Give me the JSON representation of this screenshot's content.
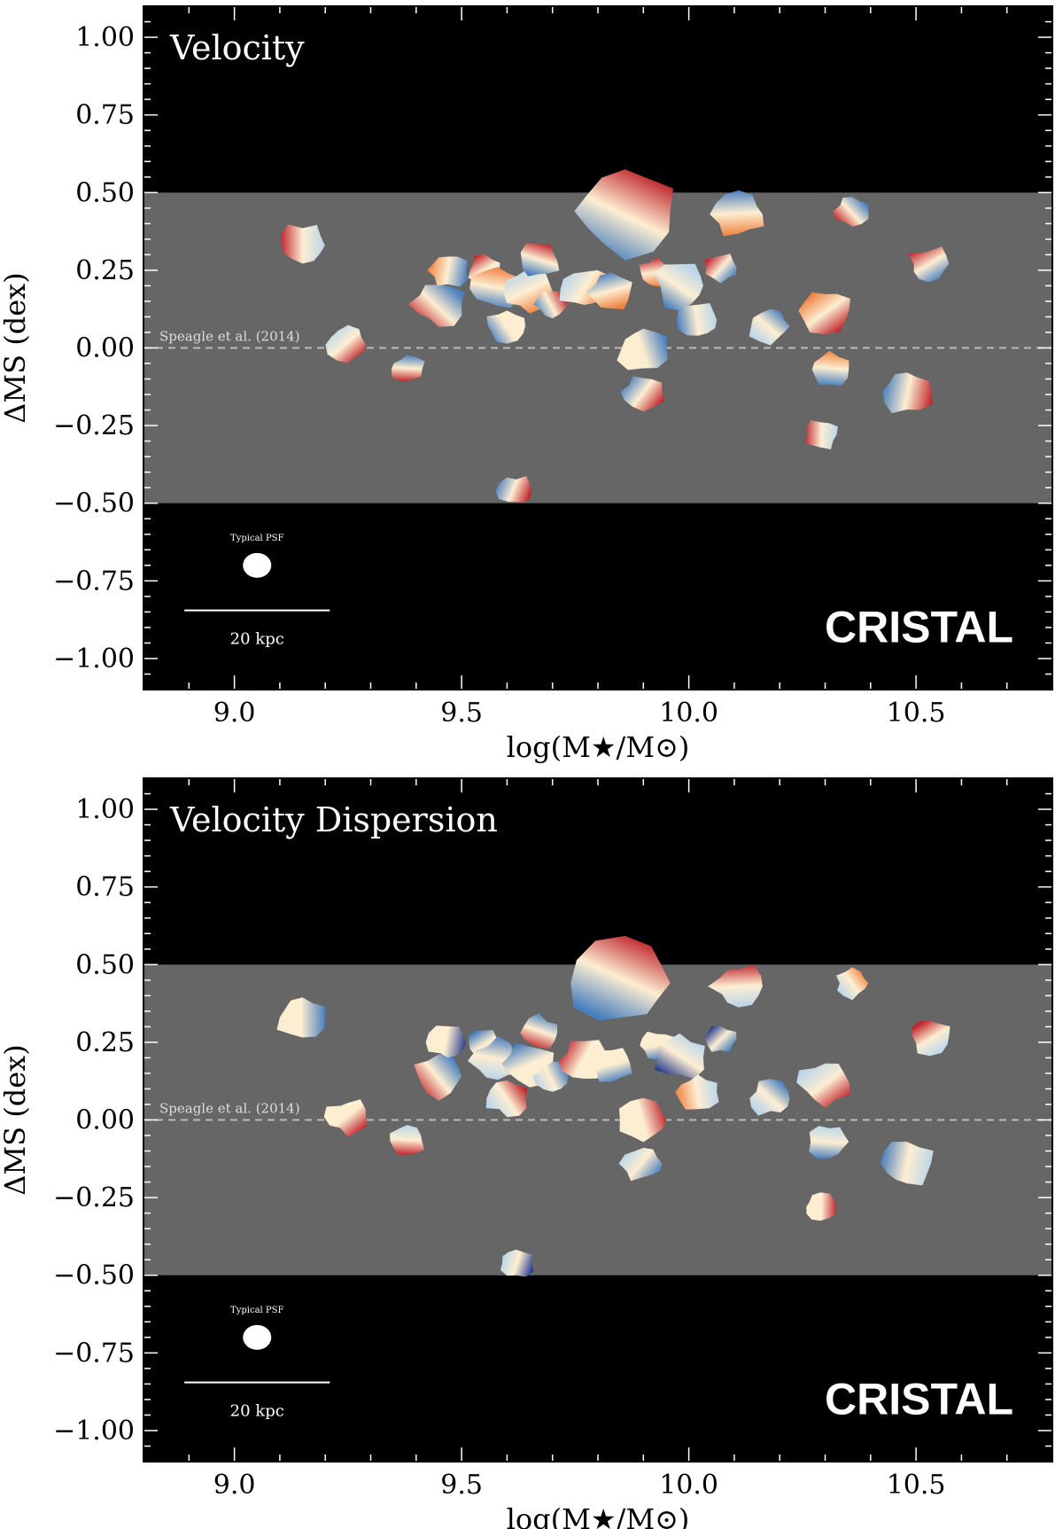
{
  "colors": {
    "background": "#000000",
    "ms_band": "#666666",
    "reference_line": "#bbbbbb",
    "red": "#c0272d",
    "orange": "#f07f3c",
    "cream": "#fdeed2",
    "light_blue": "#b9d5ea",
    "blue": "#4a7fbd",
    "dark_blue": "#2b3f8f"
  },
  "chart_data": [
    {
      "type": "scatter",
      "panel": "top",
      "title": "Velocity",
      "xlabel": "log(M★/M⊙)",
      "ylabel": "ΔMS (dex)",
      "xlim": [
        8.8,
        10.8
      ],
      "ylim": [
        -1.1,
        1.1
      ],
      "xticks": [
        9.0,
        9.5,
        10.0,
        10.5
      ],
      "xtick_labels": [
        "9.0",
        "9.5",
        "10.0",
        "10.5"
      ],
      "yticks": [
        1.0,
        0.75,
        0.5,
        0.25,
        0.0,
        -0.25,
        -0.5,
        -0.75,
        -1.0
      ],
      "ytick_labels": [
        "1.00",
        "0.75",
        "0.50",
        "0.25",
        "0.00",
        "−0.25",
        "−0.50",
        "−0.75",
        "−1.00"
      ],
      "band": [
        -0.5,
        0.5
      ],
      "reference_line": {
        "y": 0.0,
        "label": "Speagle et al. (2014)"
      },
      "psf_label": "Typical PSF",
      "scale_bar_label": "20 kpc",
      "brand": "CRISTAL",
      "galaxies": [
        {
          "x": 9.15,
          "y": 0.33,
          "colors": [
            "red",
            "light_blue"
          ]
        },
        {
          "x": 9.25,
          "y": 0.01,
          "colors": [
            "light_blue",
            "red"
          ]
        },
        {
          "x": 9.38,
          "y": -0.07,
          "colors": [
            "blue",
            "red"
          ]
        },
        {
          "x": 9.45,
          "y": 0.14,
          "colors": [
            "blue",
            "red"
          ]
        },
        {
          "x": 9.47,
          "y": 0.25,
          "colors": [
            "blue",
            "orange"
          ]
        },
        {
          "x": 9.55,
          "y": 0.25,
          "colors": [
            "light_blue",
            "red"
          ]
        },
        {
          "x": 9.58,
          "y": 0.19,
          "colors": [
            "blue",
            "orange"
          ]
        },
        {
          "x": 9.6,
          "y": 0.07,
          "colors": [
            "blue",
            "cream"
          ]
        },
        {
          "x": 9.62,
          "y": -0.46,
          "colors": [
            "blue",
            "red"
          ]
        },
        {
          "x": 9.65,
          "y": 0.18,
          "colors": [
            "light_blue",
            "orange"
          ]
        },
        {
          "x": 9.67,
          "y": 0.28,
          "colors": [
            "red",
            "blue"
          ]
        },
        {
          "x": 9.7,
          "y": 0.14,
          "colors": [
            "red",
            "blue"
          ]
        },
        {
          "x": 9.77,
          "y": 0.19,
          "colors": [
            "orange",
            "light_blue"
          ]
        },
        {
          "x": 9.83,
          "y": 0.18,
          "colors": [
            "orange",
            "blue"
          ]
        },
        {
          "x": 9.86,
          "y": 0.44,
          "colors": [
            "blue",
            "red"
          ]
        },
        {
          "x": 9.9,
          "y": 0.0,
          "colors": [
            "cream",
            "blue"
          ]
        },
        {
          "x": 9.9,
          "y": -0.14,
          "colors": [
            "blue",
            "red"
          ]
        },
        {
          "x": 9.93,
          "y": 0.24,
          "colors": [
            "red",
            "orange"
          ]
        },
        {
          "x": 9.98,
          "y": 0.2,
          "colors": [
            "light_blue",
            "blue"
          ]
        },
        {
          "x": 10.02,
          "y": 0.09,
          "colors": [
            "light_blue",
            "blue"
          ]
        },
        {
          "x": 10.07,
          "y": 0.26,
          "colors": [
            "blue",
            "red"
          ]
        },
        {
          "x": 10.11,
          "y": 0.43,
          "colors": [
            "orange",
            "blue"
          ]
        },
        {
          "x": 10.18,
          "y": 0.07,
          "colors": [
            "light_blue",
            "blue"
          ]
        },
        {
          "x": 10.29,
          "y": -0.28,
          "colors": [
            "red",
            "light_blue"
          ]
        },
        {
          "x": 10.3,
          "y": 0.12,
          "colors": [
            "orange",
            "red"
          ]
        },
        {
          "x": 10.31,
          "y": -0.07,
          "colors": [
            "orange",
            "blue"
          ]
        },
        {
          "x": 10.36,
          "y": 0.44,
          "colors": [
            "blue",
            "red"
          ]
        },
        {
          "x": 10.48,
          "y": -0.14,
          "colors": [
            "red",
            "blue"
          ]
        },
        {
          "x": 10.53,
          "y": 0.27,
          "colors": [
            "blue",
            "red"
          ]
        }
      ]
    },
    {
      "type": "scatter",
      "panel": "bottom",
      "title": "Velocity Dispersion",
      "xlabel": "log(M★/M⊙)",
      "ylabel": "ΔMS (dex)",
      "xlim": [
        8.8,
        10.8
      ],
      "ylim": [
        -1.1,
        1.1
      ],
      "xticks": [
        9.0,
        9.5,
        10.0,
        10.5
      ],
      "xtick_labels": [
        "9.0",
        "9.5",
        "10.0",
        "10.5"
      ],
      "yticks": [
        1.0,
        0.75,
        0.5,
        0.25,
        0.0,
        -0.25,
        -0.5,
        -0.75,
        -1.0
      ],
      "ytick_labels": [
        "1.00",
        "0.75",
        "0.50",
        "0.25",
        "0.00",
        "−0.25",
        "−0.50",
        "−0.75",
        "−1.00"
      ],
      "band": [
        -0.5,
        0.5
      ],
      "reference_line": {
        "y": 0.0,
        "label": "Speagle et al. (2014)"
      },
      "psf_label": "Typical PSF",
      "scale_bar_label": "20 kpc",
      "brand": "CRISTAL",
      "galaxies": [
        {
          "x": 9.15,
          "y": 0.33,
          "colors": [
            "cream",
            "blue"
          ]
        },
        {
          "x": 9.25,
          "y": 0.01,
          "colors": [
            "cream",
            "red"
          ]
        },
        {
          "x": 9.38,
          "y": -0.07,
          "colors": [
            "light_blue",
            "red"
          ]
        },
        {
          "x": 9.45,
          "y": 0.14,
          "colors": [
            "blue",
            "red"
          ]
        },
        {
          "x": 9.47,
          "y": 0.25,
          "colors": [
            "dark_blue",
            "cream"
          ]
        },
        {
          "x": 9.55,
          "y": 0.25,
          "colors": [
            "light_blue",
            "blue"
          ]
        },
        {
          "x": 9.58,
          "y": 0.19,
          "colors": [
            "light_blue",
            "blue"
          ]
        },
        {
          "x": 9.6,
          "y": 0.07,
          "colors": [
            "light_blue",
            "red"
          ]
        },
        {
          "x": 9.62,
          "y": -0.46,
          "colors": [
            "light_blue",
            "dark_blue"
          ]
        },
        {
          "x": 9.65,
          "y": 0.18,
          "colors": [
            "blue",
            "cream"
          ]
        },
        {
          "x": 9.67,
          "y": 0.28,
          "colors": [
            "blue",
            "red"
          ]
        },
        {
          "x": 9.7,
          "y": 0.14,
          "colors": [
            "blue",
            "light_blue"
          ]
        },
        {
          "x": 9.77,
          "y": 0.19,
          "colors": [
            "cream",
            "red"
          ]
        },
        {
          "x": 9.83,
          "y": 0.18,
          "colors": [
            "blue",
            "cream"
          ]
        },
        {
          "x": 9.86,
          "y": 0.44,
          "colors": [
            "blue",
            "red"
          ]
        },
        {
          "x": 9.9,
          "y": 0.0,
          "colors": [
            "cream",
            "red"
          ]
        },
        {
          "x": 9.9,
          "y": -0.14,
          "colors": [
            "light_blue",
            "blue"
          ]
        },
        {
          "x": 9.93,
          "y": 0.24,
          "colors": [
            "cream",
            "blue"
          ]
        },
        {
          "x": 9.98,
          "y": 0.2,
          "colors": [
            "light_blue",
            "dark_blue"
          ]
        },
        {
          "x": 10.02,
          "y": 0.09,
          "colors": [
            "light_blue",
            "orange"
          ]
        },
        {
          "x": 10.07,
          "y": 0.26,
          "colors": [
            "blue",
            "dark_blue"
          ]
        },
        {
          "x": 10.11,
          "y": 0.43,
          "colors": [
            "light_blue",
            "red"
          ]
        },
        {
          "x": 10.18,
          "y": 0.07,
          "colors": [
            "light_blue",
            "blue"
          ]
        },
        {
          "x": 10.29,
          "y": -0.28,
          "colors": [
            "cream",
            "red"
          ]
        },
        {
          "x": 10.3,
          "y": 0.12,
          "colors": [
            "light_blue",
            "red"
          ]
        },
        {
          "x": 10.31,
          "y": -0.07,
          "colors": [
            "light_blue",
            "blue"
          ]
        },
        {
          "x": 10.36,
          "y": 0.44,
          "colors": [
            "orange",
            "light_blue"
          ]
        },
        {
          "x": 10.48,
          "y": -0.14,
          "colors": [
            "light_blue",
            "blue"
          ]
        },
        {
          "x": 10.53,
          "y": 0.27,
          "colors": [
            "light_blue",
            "red"
          ]
        }
      ]
    }
  ]
}
